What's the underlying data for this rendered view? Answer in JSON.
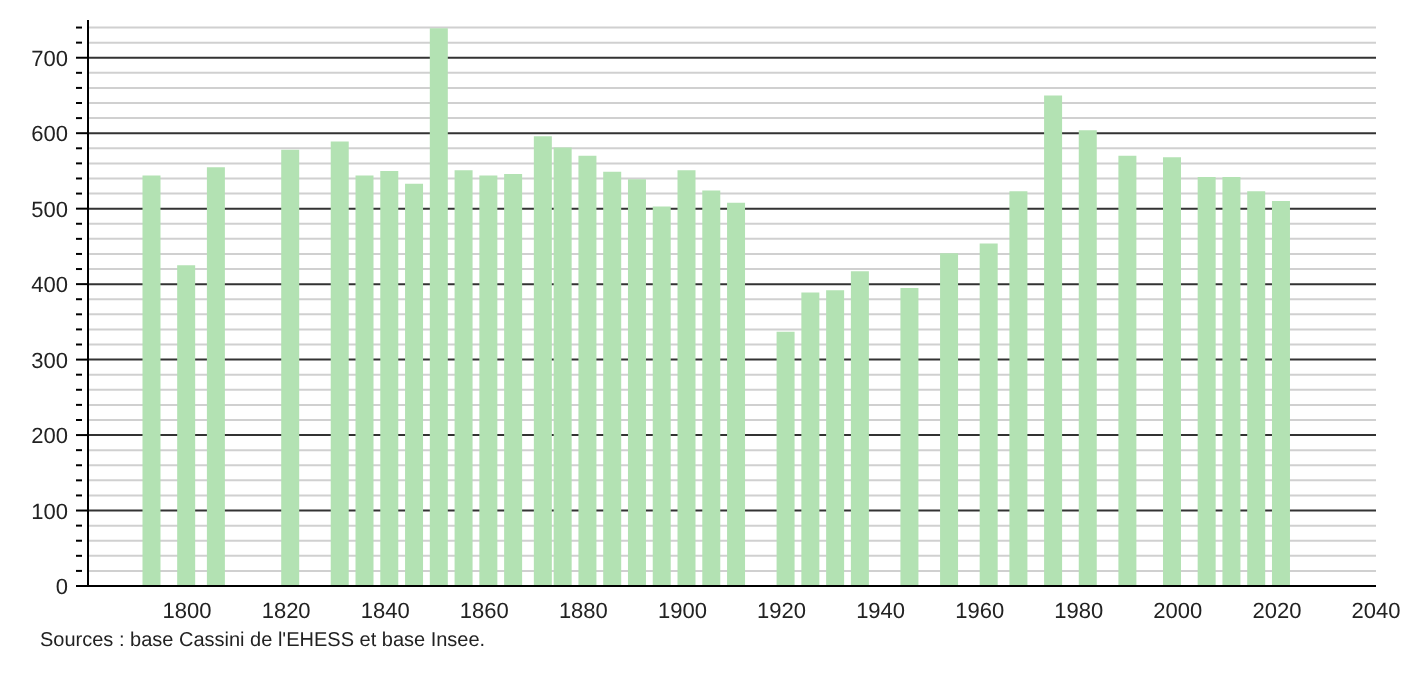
{
  "chart_data": {
    "type": "bar",
    "x": [
      1793,
      1800,
      1806,
      1821,
      1831,
      1836,
      1841,
      1846,
      1851,
      1856,
      1861,
      1866,
      1872,
      1876,
      1881,
      1886,
      1891,
      1896,
      1901,
      1906,
      1911,
      1921,
      1926,
      1931,
      1936,
      1946,
      1954,
      1962,
      1968,
      1975,
      1982,
      1990,
      1999,
      2006,
      2011,
      2016,
      2021
    ],
    "values": [
      544,
      425,
      555,
      578,
      589,
      544,
      550,
      533,
      739,
      551,
      544,
      546,
      596,
      581,
      570,
      549,
      539,
      503,
      551,
      524,
      508,
      337,
      389,
      392,
      417,
      395,
      441,
      454,
      523,
      650,
      604,
      570,
      568,
      542,
      542,
      523,
      510
    ],
    "color": "#b3e2b3",
    "xlim": [
      1780,
      2040
    ],
    "xticks": [
      1800,
      1820,
      1840,
      1860,
      1880,
      1900,
      1920,
      1940,
      1960,
      1980,
      2000,
      2020,
      2040
    ],
    "ylim": [
      0,
      750
    ],
    "yticks": [
      0,
      {
        "value": 20,
        "label": null
      },
      {
        "value": 40,
        "label": null
      },
      {
        "value": 60,
        "label": null
      },
      {
        "value": 80,
        "label": null
      },
      100,
      {
        "value": 120,
        "label": null
      },
      {
        "value": 140,
        "label": null
      },
      {
        "value": 160,
        "label": null
      },
      {
        "value": 180,
        "label": null
      },
      200,
      {
        "value": 220,
        "label": null
      },
      {
        "value": 240,
        "label": null
      },
      {
        "value": 260,
        "label": null
      },
      {
        "value": 280,
        "label": null
      },
      300,
      {
        "value": 320,
        "label": null
      },
      {
        "value": 340,
        "label": null
      },
      {
        "value": 360,
        "label": null
      },
      {
        "value": 380,
        "label": null
      },
      400,
      {
        "value": 420,
        "label": null
      },
      {
        "value": 440,
        "label": null
      },
      {
        "value": 460,
        "label": null
      },
      {
        "value": 480,
        "label": null
      },
      500,
      {
        "value": 520,
        "label": null
      },
      {
        "value": 540,
        "label": null
      },
      {
        "value": 560,
        "label": null
      },
      {
        "value": 580,
        "label": null
      },
      600,
      {
        "value": 620,
        "label": null
      },
      {
        "value": 640,
        "label": null
      },
      {
        "value": 660,
        "label": null
      },
      {
        "value": 680,
        "label": null
      },
      700,
      {
        "value": 720,
        "label": null
      },
      {
        "value": 740,
        "label": null
      }
    ],
    "grid": "y",
    "annotations": [
      "Sources : base Cassini de l'EHESS et base Insee."
    ]
  }
}
